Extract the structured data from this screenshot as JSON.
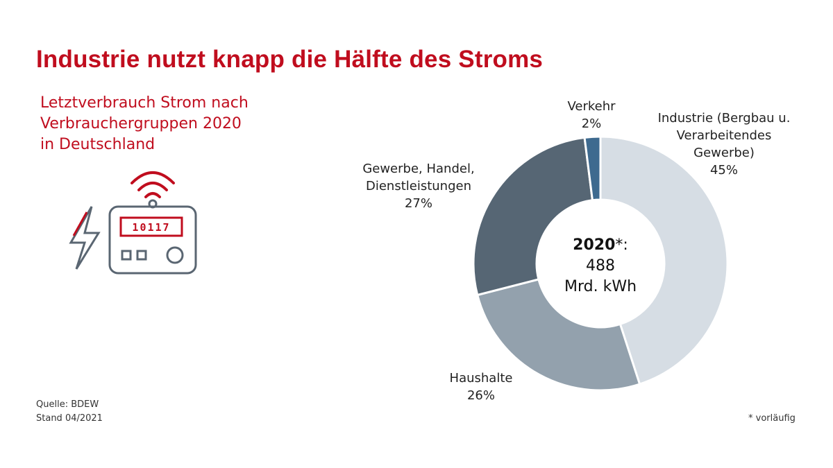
{
  "title": "Industrie nutzt knapp die Hälfte des Stroms",
  "subtitle": [
    "Letztverbrauch Strom nach",
    "Verbrauchergruppen 2020",
    "in Deutschland"
  ],
  "meter_display": "10117",
  "footer": {
    "source": "Quelle: BDEW",
    "stand": "Stand 04/2021"
  },
  "footnote": "* vorläufig",
  "center": {
    "year": "2020",
    "marker": "*:",
    "value": "488",
    "unit": "Mrd. kWh"
  },
  "colors": {
    "brand_red": "#c00d1e",
    "icon_gray": "#5a6672"
  },
  "chart_data": {
    "type": "pie",
    "donut": true,
    "total": 488,
    "total_unit": "Mrd. kWh",
    "slices": [
      {
        "label_lines": [
          "Industrie (Bergbau u.",
          "Verarbeitendes",
          "Gewerbe)"
        ],
        "value_label": "45%",
        "value": 45,
        "color": "#d6dde4"
      },
      {
        "label_lines": [
          "Haushalte"
        ],
        "value_label": "26%",
        "value": 26,
        "color": "#93a1ad"
      },
      {
        "label_lines": [
          "Gewerbe, Handel,",
          "Dienstleistungen"
        ],
        "value_label": "27%",
        "value": 27,
        "color": "#566674"
      },
      {
        "label_lines": [
          "Verkehr"
        ],
        "value_label": "2%",
        "value": 2,
        "color": "#3e6a8f"
      }
    ]
  }
}
